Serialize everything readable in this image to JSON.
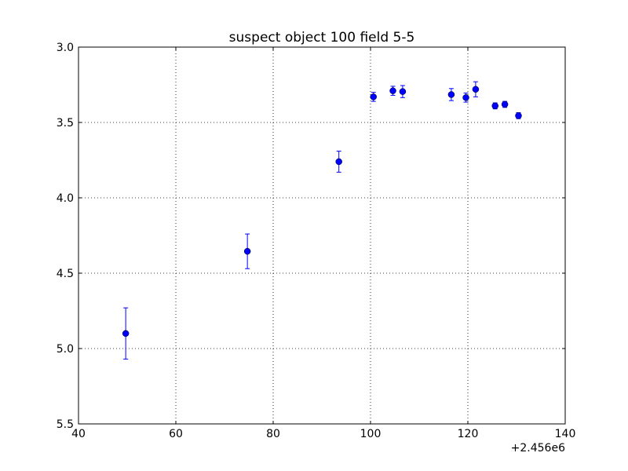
{
  "chart_data": {
    "type": "scatter",
    "title": "suspect object 100 field 5-5",
    "xlabel": "",
    "ylabel": "",
    "xlim": [
      40,
      140
    ],
    "ylim": [
      3.0,
      5.5
    ],
    "y_inverted": true,
    "x_offset_label": "+2.456e6",
    "grid": true,
    "xticks": [
      40,
      60,
      80,
      100,
      120,
      140
    ],
    "xtick_labels": [
      "40",
      "60",
      "80",
      "100",
      "120",
      "140"
    ],
    "yticks": [
      3.0,
      3.5,
      4.0,
      4.5,
      5.0,
      5.5
    ],
    "ytick_labels": [
      "3.0",
      "3.5",
      "4.0",
      "4.5",
      "5.0",
      "5.5"
    ],
    "color": "#0000ff",
    "series": [
      {
        "points": [
          {
            "x": 49.7,
            "y": 4.9,
            "err": 0.17
          },
          {
            "x": 74.7,
            "y": 4.355,
            "err": 0.115
          },
          {
            "x": 93.5,
            "y": 3.76,
            "err": 0.07
          },
          {
            "x": 100.6,
            "y": 3.33,
            "err": 0.03
          },
          {
            "x": 104.6,
            "y": 3.29,
            "err": 0.03
          },
          {
            "x": 106.6,
            "y": 3.295,
            "err": 0.04
          },
          {
            "x": 116.6,
            "y": 3.315,
            "err": 0.04
          },
          {
            "x": 119.6,
            "y": 3.335,
            "err": 0.03
          },
          {
            "x": 121.6,
            "y": 3.28,
            "err": 0.05
          },
          {
            "x": 125.6,
            "y": 3.39,
            "err": 0.02
          },
          {
            "x": 127.6,
            "y": 3.38,
            "err": 0.02
          },
          {
            "x": 130.4,
            "y": 3.455,
            "err": 0.02
          }
        ]
      }
    ]
  }
}
